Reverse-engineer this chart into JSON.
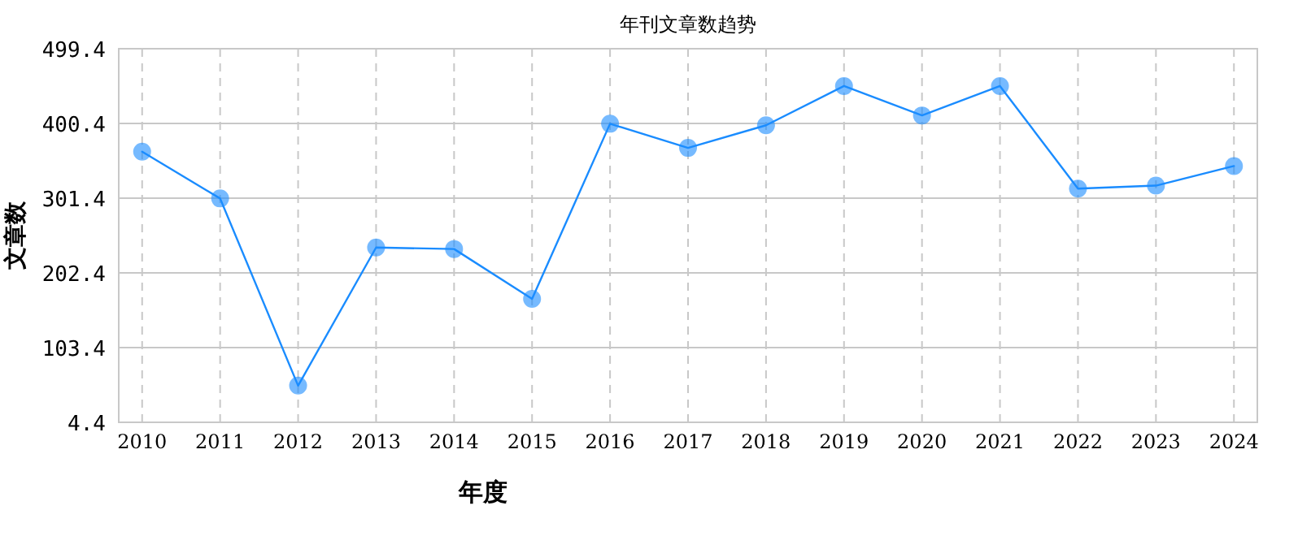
{
  "chart_data": {
    "type": "line",
    "title": "年刊文章数趋势",
    "xlabel": "年度",
    "ylabel": "文章数",
    "categories": [
      "2010",
      "2011",
      "2012",
      "2013",
      "2014",
      "2015",
      "2016",
      "2017",
      "2018",
      "2019",
      "2020",
      "2021",
      "2022",
      "2023",
      "2024"
    ],
    "series": [
      {
        "color": "#1a8cff",
        "values": [
          363,
          301,
          53,
          236,
          234,
          168,
          400,
          368,
          398,
          450,
          411,
          450,
          314,
          318,
          344
        ]
      }
    ],
    "ylim": [
      4.4,
      499.4
    ],
    "yticks": [
      4.4,
      103.4,
      202.4,
      301.4,
      400.4,
      499.4
    ],
    "grid": true,
    "marker": "circle",
    "line_style": "solid"
  }
}
